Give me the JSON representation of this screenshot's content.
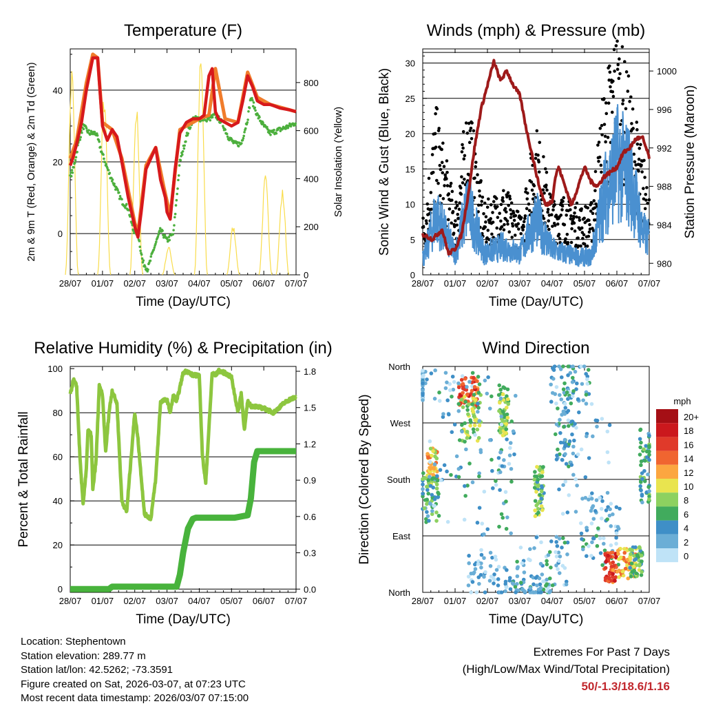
{
  "x_ticks": [
    "28/07",
    "01/07",
    "02/07",
    "03/07",
    "04/07",
    "05/07",
    "06/07",
    "07/07"
  ],
  "x_label": "Time (Day/UTC)",
  "colors": {
    "temp": "#d7191c",
    "temp9m": "#f07c2b",
    "dew": "#4caf3d",
    "solar": "#f9dc4a",
    "gust": "#000000",
    "wind": "#4a90d0",
    "pressure": "#9e1a1a",
    "rh": "#8dc63f",
    "precip": "#48b33c"
  },
  "chart_data": [
    {
      "type": "line",
      "title": "Temperature (F)",
      "ylabel": "2m & 9m T (Red, Orange) & 2m Td (Green)",
      "y2label": "Solar Insolation (Yellow)",
      "ylim": [
        -11.5,
        51.5
      ],
      "yticks": [
        0,
        20,
        40
      ],
      "y2lim": [
        0,
        940
      ],
      "y2ticks": [
        0,
        200,
        400,
        600,
        800
      ],
      "series": [
        {
          "name": "2m T",
          "x": [
            0,
            0.08,
            0.2,
            0.35,
            0.5,
            0.7,
            0.85,
            1.0,
            1.15,
            1.3,
            1.45,
            1.6,
            1.8,
            2.0,
            2.1,
            2.2,
            2.35,
            2.5,
            2.65,
            2.8,
            2.95,
            3.0,
            3.1,
            3.25,
            3.4,
            3.6,
            3.8,
            4.0,
            4.15,
            4.3,
            4.4,
            4.5,
            4.6,
            4.8,
            5.0,
            5.2,
            5.35,
            5.5,
            5.65,
            5.8,
            6.0,
            6.2,
            6.5,
            6.8,
            7.0
          ],
          "y": [
            19,
            21,
            25,
            31,
            40,
            49,
            49,
            30,
            26,
            29,
            27,
            20,
            10,
            2,
            -1,
            6,
            18,
            21,
            24,
            15,
            10,
            6,
            4,
            18,
            28,
            31,
            32,
            32,
            33,
            44,
            46,
            34,
            32,
            31,
            30,
            31,
            37,
            44,
            41,
            37,
            36,
            36,
            35,
            34.5,
            34
          ]
        },
        {
          "name": "9m T",
          "x": [
            0,
            0.2,
            0.35,
            0.5,
            0.7,
            0.85,
            1.0,
            1.3,
            1.6,
            2.0,
            2.1,
            2.35,
            2.65,
            2.9,
            3.1,
            3.4,
            4.0,
            4.3,
            4.5,
            4.8,
            5.2,
            5.5,
            5.8,
            6.2,
            7.0
          ],
          "y": [
            21,
            26,
            34,
            42,
            50,
            49,
            31,
            29,
            21,
            3,
            0,
            19,
            24,
            13,
            5,
            29,
            32,
            33,
            46,
            32,
            31,
            45,
            38,
            36,
            34
          ]
        },
        {
          "name": "2m Td",
          "x": [
            0,
            0.1,
            0.25,
            0.4,
            0.6,
            0.8,
            1.0,
            1.2,
            1.4,
            1.6,
            1.8,
            1.95,
            2.1,
            2.25,
            2.4,
            2.6,
            2.8,
            3.0,
            3.2,
            3.4,
            3.6,
            3.8,
            4.0,
            4.3,
            4.5,
            4.7,
            4.9,
            5.1,
            5.3,
            5.5,
            5.6,
            5.8,
            6.0,
            6.2,
            6.5,
            6.8,
            7.0
          ],
          "y": [
            16,
            18,
            25,
            30,
            28,
            28,
            22,
            17,
            13,
            9,
            7,
            1,
            0,
            -8,
            -10,
            -4,
            1,
            -2,
            0,
            20,
            27,
            32,
            32,
            32,
            33,
            31,
            27,
            25,
            25,
            32,
            38,
            33,
            30,
            28,
            29,
            30,
            31
          ]
        },
        {
          "name": "Solar",
          "axis": "y2",
          "peaks": [
            [
              0.05,
              880
            ],
            [
              1.05,
              780
            ],
            [
              2.05,
              720
            ],
            [
              3.05,
              120
            ],
            [
              4.05,
              930
            ],
            [
              5.05,
              210
            ],
            [
              6.05,
              420
            ],
            [
              6.58,
              360
            ]
          ]
        }
      ]
    },
    {
      "type": "scatter",
      "title": "Winds (mph) & Pressure (mb)",
      "ylabel": "Sonic Wind & Gust (Blue, Black)",
      "y2label": "Station Pressure (Maroon)",
      "ylim": [
        0,
        32
      ],
      "yticks": [
        0,
        5,
        10,
        15,
        20,
        25,
        30
      ],
      "y2lim": [
        978.8,
        1002.3
      ],
      "y2ticks": [
        980,
        984,
        988,
        992,
        996,
        1000
      ],
      "series": [
        {
          "name": "Pressure",
          "x": [
            0,
            0.3,
            0.6,
            0.8,
            1.0,
            1.2,
            1.4,
            1.6,
            1.8,
            2.0,
            2.2,
            2.4,
            2.6,
            2.8,
            3.0,
            3.2,
            3.4,
            3.6,
            3.8,
            4.0,
            4.1,
            4.2,
            4.4,
            4.6,
            4.8,
            5.0,
            5.2,
            5.4,
            5.6,
            5.8,
            6.0,
            6.2,
            6.4,
            6.6,
            6.8,
            7.0
          ],
          "y": [
            983,
            982.5,
            983.5,
            981,
            981.5,
            983,
            987,
            992,
            996,
            998.5,
            1001,
            999,
            1000,
            998.5,
            997.5,
            994,
            991,
            988,
            986,
            986.5,
            989,
            990,
            988,
            986,
            988,
            990,
            988.5,
            988,
            989,
            989.5,
            990,
            991.5,
            992,
            993,
            993,
            991
          ]
        },
        {
          "name": "Wind speed",
          "centers": [
            [
              0.05,
              2.5
            ],
            [
              0.4,
              8.5
            ],
            [
              1.0,
              3
            ],
            [
              1.4,
              10
            ],
            [
              1.9,
              3
            ],
            [
              2.5,
              4
            ],
            [
              3.0,
              3
            ],
            [
              3.5,
              8
            ],
            [
              4.0,
              3.5
            ],
            [
              4.4,
              3
            ],
            [
              4.8,
              2.5
            ],
            [
              5.2,
              2.5
            ],
            [
              5.6,
              11
            ],
            [
              6.0,
              16
            ],
            [
              6.4,
              14
            ],
            [
              6.8,
              6
            ],
            [
              7.0,
              5
            ]
          ]
        },
        {
          "name": "Gust",
          "centers": [
            [
              0.05,
              6
            ],
            [
              0.4,
              17
            ],
            [
              1.0,
              7
            ],
            [
              1.4,
              18
            ],
            [
              1.9,
              7
            ],
            [
              2.5,
              9
            ],
            [
              3.0,
              6
            ],
            [
              3.5,
              15
            ],
            [
              4.0,
              8
            ],
            [
              4.4,
              8
            ],
            [
              4.8,
              7
            ],
            [
              5.2,
              7
            ],
            [
              5.6,
              19
            ],
            [
              6.0,
              25
            ],
            [
              6.4,
              19
            ],
            [
              6.8,
              12
            ],
            [
              7.0,
              10
            ]
          ]
        }
      ]
    },
    {
      "type": "line",
      "title": "Relative Humidity (%) & Precipitation (in)",
      "ylabel": "Percent & Total Rainfall",
      "ylim": [
        -1.5,
        101
      ],
      "yticks": [
        0,
        20,
        40,
        60,
        80,
        100
      ],
      "y2lim": [
        -0.027,
        1.84
      ],
      "y2ticks": [
        "0.0",
        "0.3",
        "0.6",
        "0.9",
        "1.2",
        "1.5",
        "1.8"
      ],
      "series": [
        {
          "name": "RH",
          "x": [
            0,
            0.1,
            0.2,
            0.3,
            0.4,
            0.5,
            0.55,
            0.65,
            0.7,
            0.8,
            0.9,
            1.0,
            1.1,
            1.2,
            1.3,
            1.45,
            1.6,
            1.75,
            1.9,
            2.0,
            2.1,
            2.3,
            2.5,
            2.65,
            2.8,
            3.0,
            3.1,
            3.2,
            3.3,
            3.5,
            3.6,
            3.8,
            4.0,
            4.1,
            4.2,
            4.4,
            4.5,
            4.6,
            4.8,
            5.0,
            5.2,
            5.3,
            5.4,
            5.5,
            5.6,
            5.7,
            6.0,
            6.3,
            6.6,
            6.8,
            7.0
          ],
          "y": [
            88,
            95,
            92,
            60,
            38,
            55,
            72,
            70,
            45,
            58,
            92,
            88,
            62,
            80,
            90,
            84,
            40,
            35,
            62,
            80,
            68,
            34,
            32,
            50,
            85,
            86,
            80,
            88,
            85,
            98,
            99,
            97,
            97,
            60,
            48,
            98,
            97,
            99,
            98,
            96,
            80,
            89,
            72,
            85,
            83,
            83,
            82,
            80,
            84,
            86,
            87
          ]
        },
        {
          "name": "Precip",
          "x": [
            0,
            1.2,
            1.3,
            3.3,
            3.4,
            3.5,
            3.65,
            3.8,
            3.9,
            5.1,
            5.5,
            5.6,
            5.7,
            5.8,
            7.0
          ],
          "y": [
            0,
            0,
            0.02,
            0.02,
            0.12,
            0.3,
            0.5,
            0.58,
            0.59,
            0.59,
            0.61,
            0.75,
            1.05,
            1.14,
            1.14
          ]
        }
      ]
    },
    {
      "type": "scatter",
      "title": "Wind Direction",
      "ylabel": "Direction (Colored By Speed)",
      "yticks": [
        "North",
        "East",
        "South",
        "West",
        "North"
      ],
      "legend_title": "mph",
      "legend_labels": [
        "20+",
        "18",
        "16",
        "14",
        "12",
        "10",
        "8",
        "6",
        "4",
        "2",
        "0"
      ],
      "legend_colors": [
        "#a50f15",
        "#cb181d",
        "#e03a2a",
        "#f06530",
        "#fca640",
        "#e9e44f",
        "#8dd160",
        "#41ab5d",
        "#3f8fc7",
        "#6baed6",
        "#bfe3f7"
      ]
    }
  ],
  "info": {
    "location": "Location: Stephentown",
    "elevation": "Station elevation: 289.77 m",
    "latlon": "Station lat/lon: 42.5262; -73.3591",
    "created": "Figure created on Sat, 2026-03-07, at 07:23 UTC",
    "recent": "Most recent data timestamp: 2026/03/07 07:15:00"
  },
  "extremes": {
    "line1": "Extremes For Past 7 Days",
    "line2": "(High/Low/Max Wind/Total Precipitation)",
    "values": "50/-1.3/18.6/1.16"
  }
}
